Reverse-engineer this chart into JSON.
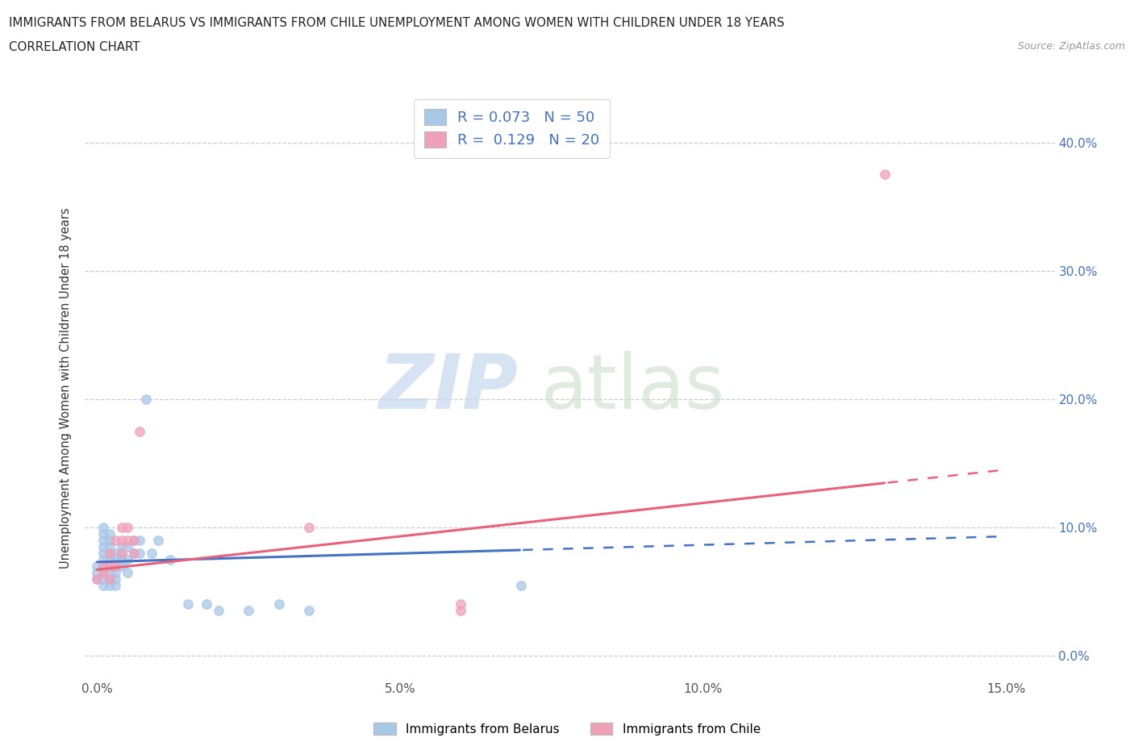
{
  "title_line1": "IMMIGRANTS FROM BELARUS VS IMMIGRANTS FROM CHILE UNEMPLOYMENT AMONG WOMEN WITH CHILDREN UNDER 18 YEARS",
  "title_line2": "CORRELATION CHART",
  "source": "Source: ZipAtlas.com",
  "ylabel": "Unemployment Among Women with Children Under 18 years",
  "xlim": [
    -0.002,
    0.158
  ],
  "ylim": [
    -0.018,
    0.435
  ],
  "xtick_vals": [
    0.0,
    0.05,
    0.1,
    0.15
  ],
  "xtick_labels": [
    "0.0%",
    "5.0%",
    "10.0%",
    "15.0%"
  ],
  "ytick_vals": [
    0.0,
    0.1,
    0.2,
    0.3,
    0.4
  ],
  "ytick_labels": [
    "0.0%",
    "10.0%",
    "20.0%",
    "30.0%",
    "40.0%"
  ],
  "belarus_color": "#a8c8e8",
  "chile_color": "#f0a0b8",
  "belarus_line_color": "#4472c4",
  "chile_line_color": "#e8607a",
  "R_belarus": "0.073",
  "N_belarus": "50",
  "R_chile": "0.129",
  "N_chile": "20",
  "legend_label_belarus": "Immigrants from Belarus",
  "legend_label_chile": "Immigrants from Chile",
  "grid_color": "#cccccc",
  "belarus_x": [
    0.0,
    0.0,
    0.0,
    0.001,
    0.001,
    0.001,
    0.001,
    0.001,
    0.001,
    0.001,
    0.001,
    0.001,
    0.001,
    0.002,
    0.002,
    0.002,
    0.002,
    0.002,
    0.002,
    0.002,
    0.002,
    0.002,
    0.003,
    0.003,
    0.003,
    0.003,
    0.003,
    0.003,
    0.004,
    0.004,
    0.004,
    0.004,
    0.005,
    0.005,
    0.005,
    0.006,
    0.006,
    0.007,
    0.007,
    0.008,
    0.009,
    0.01,
    0.012,
    0.015,
    0.018,
    0.02,
    0.025,
    0.03,
    0.035,
    0.07
  ],
  "belarus_y": [
    0.06,
    0.065,
    0.07,
    0.055,
    0.06,
    0.065,
    0.07,
    0.075,
    0.08,
    0.085,
    0.09,
    0.095,
    0.1,
    0.055,
    0.06,
    0.065,
    0.07,
    0.075,
    0.08,
    0.085,
    0.09,
    0.095,
    0.055,
    0.06,
    0.065,
    0.07,
    0.075,
    0.08,
    0.07,
    0.075,
    0.08,
    0.085,
    0.065,
    0.075,
    0.085,
    0.08,
    0.09,
    0.08,
    0.09,
    0.2,
    0.08,
    0.09,
    0.075,
    0.04,
    0.04,
    0.035,
    0.035,
    0.04,
    0.035,
    0.055
  ],
  "chile_x": [
    0.0,
    0.001,
    0.001,
    0.002,
    0.002,
    0.002,
    0.003,
    0.003,
    0.004,
    0.004,
    0.004,
    0.005,
    0.005,
    0.006,
    0.006,
    0.007,
    0.035,
    0.06,
    0.06,
    0.13
  ],
  "chile_y": [
    0.06,
    0.065,
    0.07,
    0.06,
    0.07,
    0.08,
    0.07,
    0.09,
    0.08,
    0.09,
    0.1,
    0.09,
    0.1,
    0.08,
    0.09,
    0.175,
    0.1,
    0.035,
    0.04,
    0.375
  ],
  "watermark_zip": "ZIP",
  "watermark_atlas": "atlas"
}
